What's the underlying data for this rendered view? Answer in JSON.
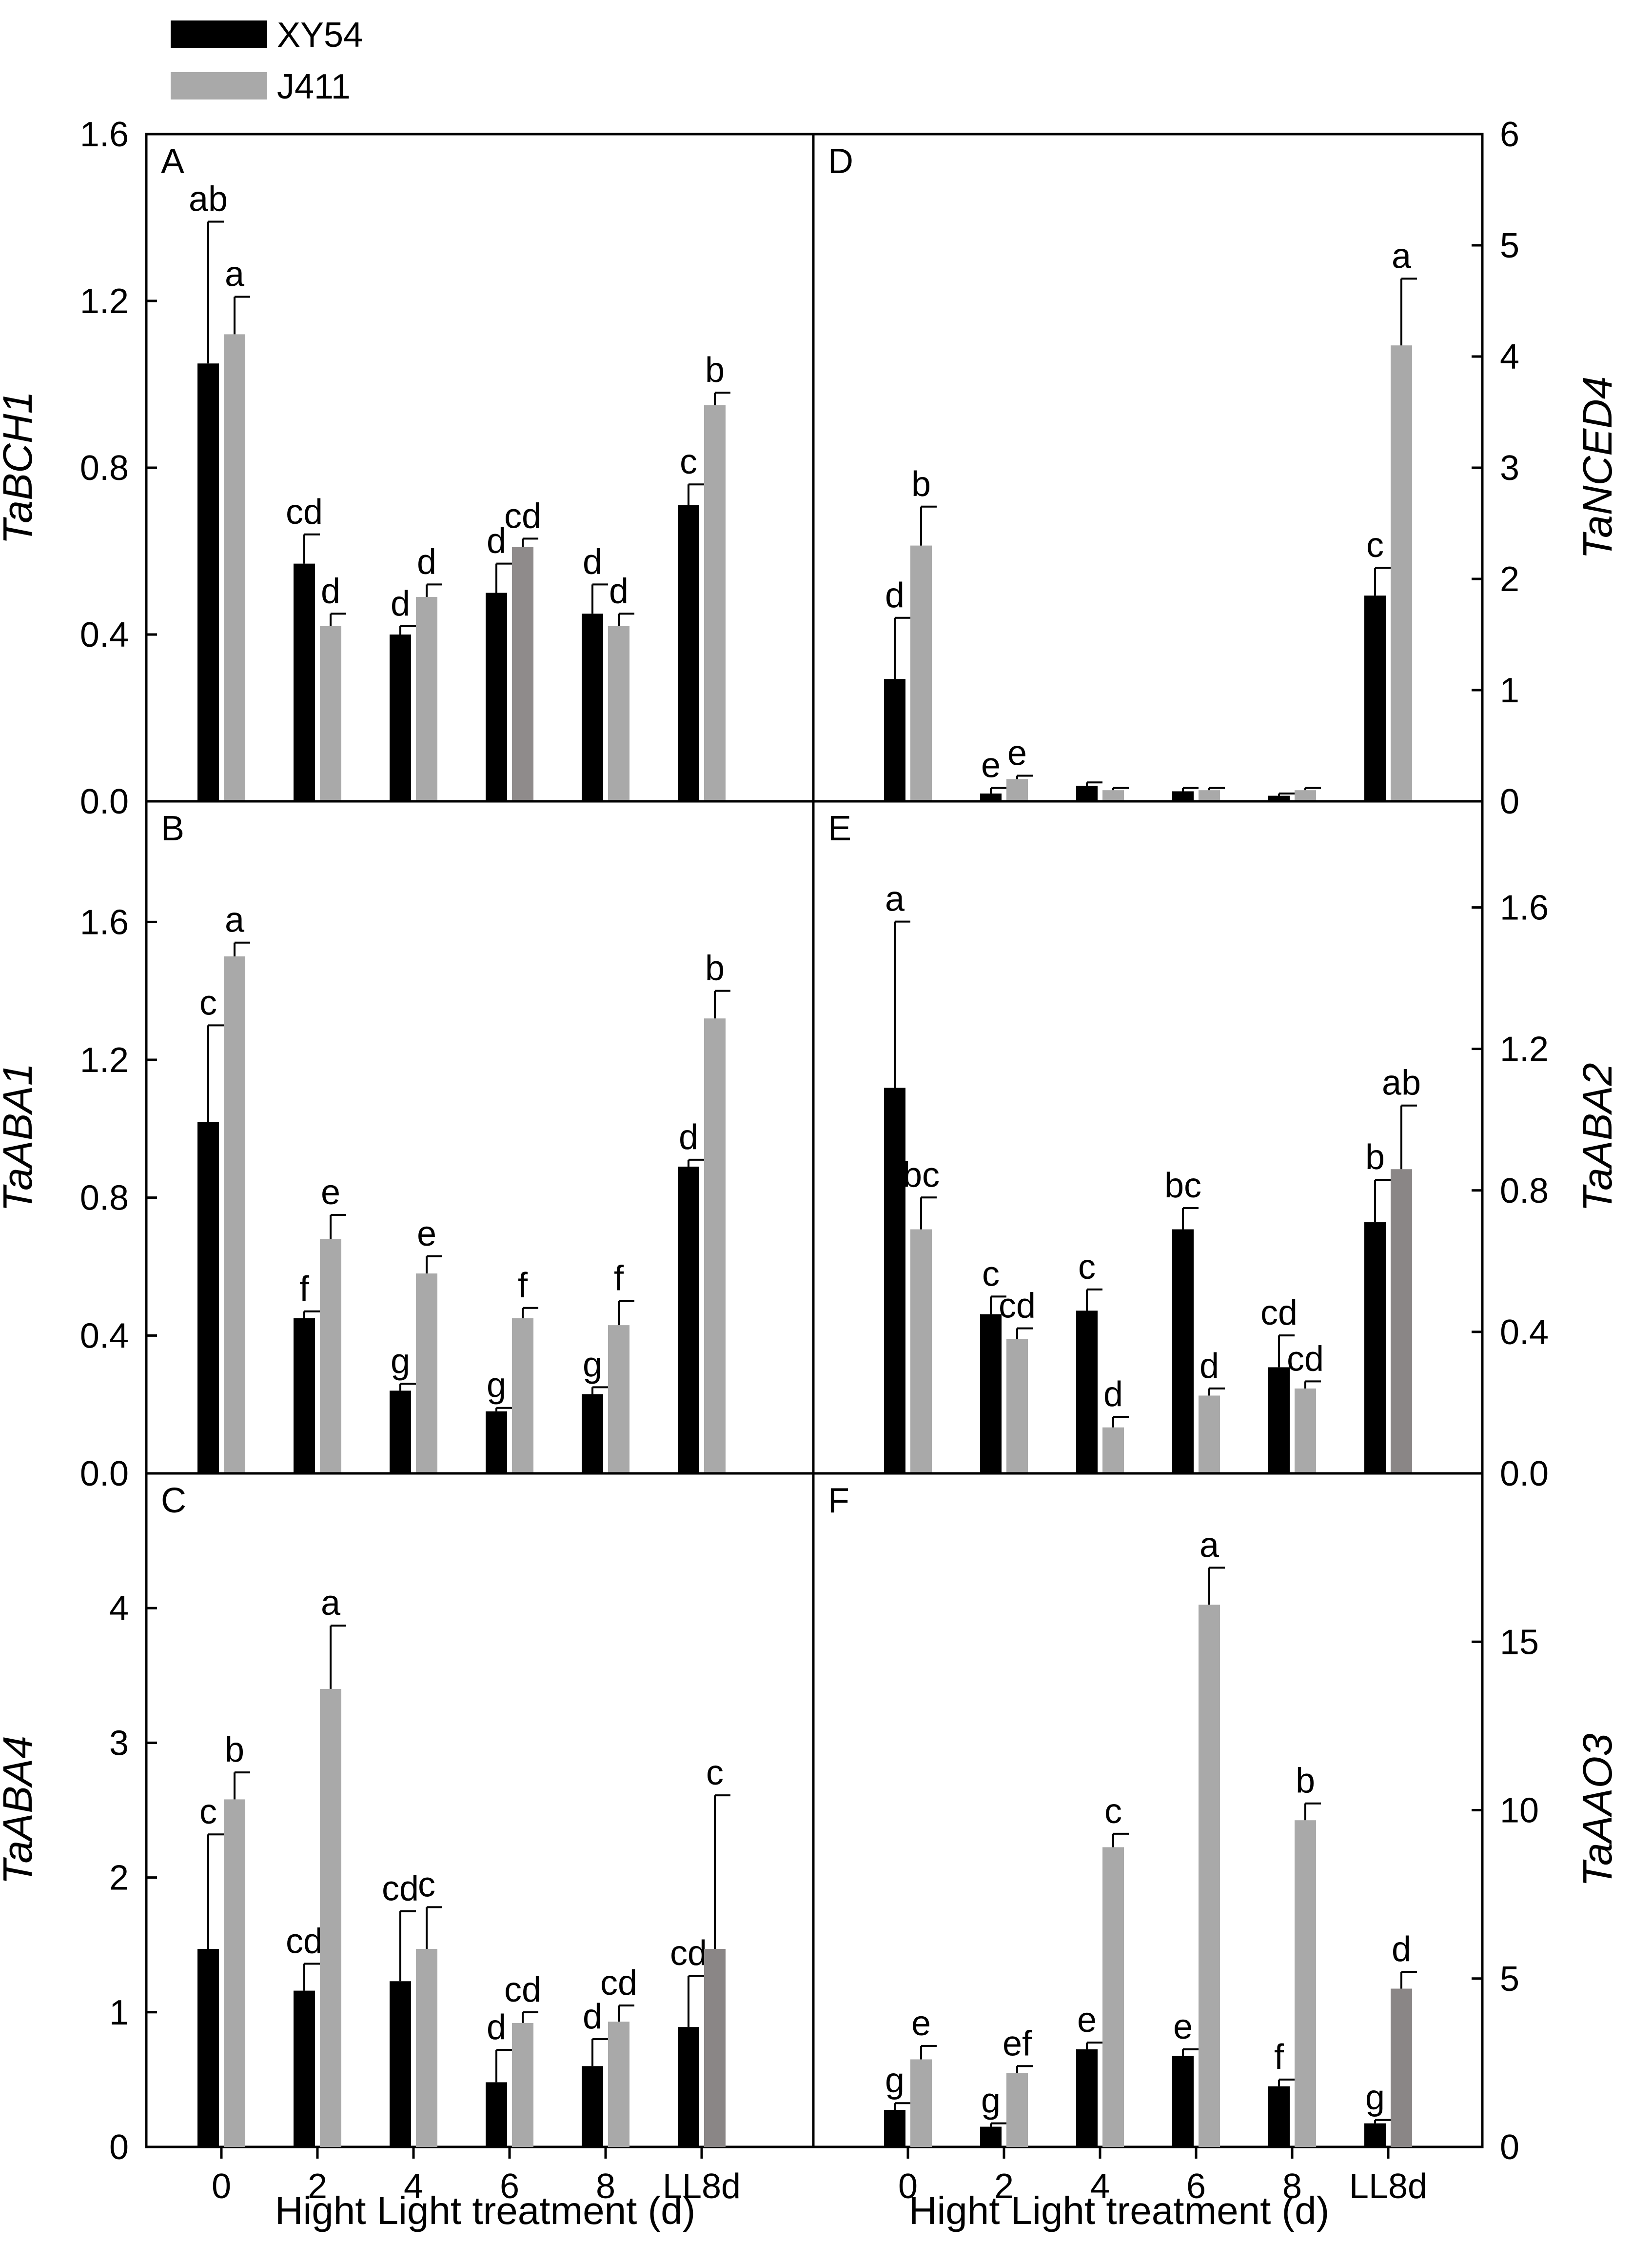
{
  "legend": {
    "title": "",
    "entries": [
      {
        "name": "XY54",
        "color": "#000000"
      },
      {
        "name": "J411",
        "color": "#a9a9a9"
      }
    ]
  },
  "x_axis_label": "Hight Light treatment (d)",
  "categories": [
    "0",
    "2",
    "4",
    "6",
    "8",
    "LL8d"
  ],
  "chart_data": [
    {
      "type": "bar",
      "panel": "A",
      "ylabel": "TaBCH1",
      "ylabel_side": "left",
      "ylim": [
        0,
        1.6
      ],
      "yticks": [
        "0.0",
        "0.4",
        "0.8",
        "1.2",
        "1.6"
      ],
      "categories": [
        "0",
        "2",
        "4",
        "6",
        "8",
        "LL8d"
      ],
      "series": [
        {
          "name": "XY54",
          "color": "#000000",
          "values": [
            1.05,
            0.57,
            0.4,
            0.5,
            0.45,
            0.71
          ],
          "errors": [
            0.34,
            0.07,
            0.02,
            0.07,
            0.07,
            0.05
          ],
          "letters": [
            "ab",
            "cd",
            "d",
            "d",
            "d",
            "c"
          ]
        },
        {
          "name": "J411",
          "color": "#a9a9a9",
          "values": [
            1.12,
            0.42,
            0.49,
            0.61,
            0.42,
            0.95
          ],
          "errors": [
            0.09,
            0.03,
            0.03,
            0.02,
            0.03,
            0.03
          ],
          "letters": [
            "a",
            "d",
            "d",
            "cd",
            "d",
            "b"
          ]
        }
      ]
    },
    {
      "type": "bar",
      "panel": "D",
      "ylabel": "TaNCED4",
      "ylabel_side": "right",
      "ylim": [
        0,
        6
      ],
      "yticks": [
        "0",
        "1",
        "2",
        "3",
        "4",
        "5",
        "6"
      ],
      "categories": [
        "0",
        "2",
        "4",
        "6",
        "8",
        "LL8d"
      ],
      "series": [
        {
          "name": "XY54",
          "color": "#000000",
          "values": [
            1.1,
            0.07,
            0.14,
            0.09,
            0.05,
            1.85
          ],
          "errors": [
            0.55,
            0.05,
            0.03,
            0.03,
            0.02,
            0.25
          ],
          "letters": [
            "d",
            "e",
            "",
            "",
            "",
            "c"
          ]
        },
        {
          "name": "J411",
          "color": "#a9a9a9",
          "values": [
            2.3,
            0.2,
            0.1,
            0.1,
            0.1,
            4.1
          ],
          "errors": [
            0.35,
            0.03,
            0.02,
            0.02,
            0.02,
            0.6
          ],
          "letters": [
            "b",
            "e",
            "",
            "",
            "",
            "a"
          ]
        }
      ]
    },
    {
      "type": "bar",
      "panel": "B",
      "ylabel": "TaABA1",
      "ylabel_side": "left",
      "ylim": [
        0,
        1.95
      ],
      "yticks": [
        "0.0",
        "0.4",
        "0.8",
        "1.2",
        "1.6"
      ],
      "categories": [
        "0",
        "2",
        "4",
        "6",
        "8",
        "LL8d"
      ],
      "series": [
        {
          "name": "XY54",
          "color": "#000000",
          "values": [
            1.02,
            0.45,
            0.24,
            0.18,
            0.23,
            0.89
          ],
          "errors": [
            0.28,
            0.02,
            0.02,
            0.01,
            0.02,
            0.02
          ],
          "letters": [
            "c",
            "f",
            "g",
            "g",
            "g",
            "d"
          ]
        },
        {
          "name": "J411",
          "color": "#a9a9a9",
          "values": [
            1.5,
            0.68,
            0.58,
            0.45,
            0.43,
            1.32
          ],
          "errors": [
            0.04,
            0.07,
            0.05,
            0.03,
            0.07,
            0.08
          ],
          "letters": [
            "a",
            "e",
            "e",
            "f",
            "f",
            "b"
          ]
        }
      ]
    },
    {
      "type": "bar",
      "panel": "E",
      "ylabel": "TaABA2",
      "ylabel_side": "right",
      "ylim": [
        0,
        1.9
      ],
      "yticks": [
        "0.0",
        "0.4",
        "0.8",
        "1.2",
        "1.6"
      ],
      "categories": [
        "0",
        "2",
        "4",
        "6",
        "8",
        "LL8d"
      ],
      "series": [
        {
          "name": "XY54",
          "color": "#000000",
          "values": [
            1.09,
            0.45,
            0.46,
            0.69,
            0.3,
            0.71
          ],
          "errors": [
            0.47,
            0.05,
            0.06,
            0.06,
            0.09,
            0.12
          ],
          "letters": [
            "a",
            "c",
            "c",
            "bc",
            "cd",
            "b"
          ]
        },
        {
          "name": "J411",
          "color": "#a9a9a9",
          "values": [
            0.69,
            0.38,
            0.13,
            0.22,
            0.24,
            0.86
          ],
          "errors": [
            0.09,
            0.03,
            0.03,
            0.02,
            0.02,
            0.18
          ],
          "letters": [
            "bc",
            "cd",
            "d",
            "d",
            "cd",
            "ab"
          ]
        }
      ]
    },
    {
      "type": "bar",
      "panel": "C",
      "ylabel": "TaABA4",
      "ylabel_side": "left",
      "ylim": [
        0,
        5
      ],
      "yticks": [
        "0",
        "1",
        "2",
        "3",
        "4"
      ],
      "categories": [
        "0",
        "2",
        "4",
        "6",
        "8",
        "LL8d"
      ],
      "series": [
        {
          "name": "XY54",
          "color": "#000000",
          "values": [
            1.47,
            1.16,
            1.23,
            0.48,
            0.6,
            0.89
          ],
          "errors": [
            0.85,
            0.2,
            0.52,
            0.24,
            0.2,
            0.38
          ],
          "letters": [
            "c",
            "cd",
            "cd",
            "d",
            "d",
            "cd"
          ]
        },
        {
          "name": "J411",
          "color": "#a9a9a9",
          "values": [
            2.58,
            3.4,
            1.47,
            0.92,
            0.93,
            1.47
          ],
          "errors": [
            0.2,
            0.47,
            0.31,
            0.08,
            0.12,
            1.14
          ],
          "letters": [
            "b",
            "a",
            "c",
            "cd",
            "cd",
            "c"
          ]
        }
      ]
    },
    {
      "type": "bar",
      "panel": "F",
      "ylabel": "TaAAO3",
      "ylabel_side": "right",
      "ylim": [
        0,
        20
      ],
      "yticks": [
        "0",
        "5",
        "10",
        "15"
      ],
      "categories": [
        "0",
        "2",
        "4",
        "6",
        "8",
        "LL8d"
      ],
      "series": [
        {
          "name": "XY54",
          "color": "#000000",
          "values": [
            1.1,
            0.6,
            2.9,
            2.7,
            1.8,
            0.7
          ],
          "errors": [
            0.2,
            0.1,
            0.2,
            0.2,
            0.2,
            0.1
          ],
          "letters": [
            "g",
            "g",
            "e",
            "e",
            "f",
            "g"
          ]
        },
        {
          "name": "J411",
          "color": "#a9a9a9",
          "values": [
            2.6,
            2.2,
            8.9,
            16.1,
            9.7,
            4.7
          ],
          "errors": [
            0.4,
            0.2,
            0.4,
            1.1,
            0.5,
            0.5
          ],
          "letters": [
            "e",
            "ef",
            "c",
            "a",
            "b",
            "d"
          ]
        }
      ]
    }
  ]
}
